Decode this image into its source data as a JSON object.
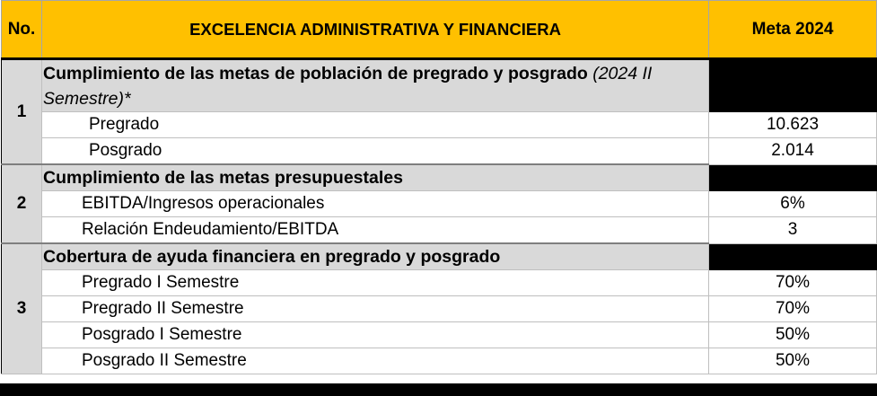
{
  "header": {
    "no_label": "No.",
    "title": "EXCELENCIA ADMINISTRATIVA Y FINANCIERA",
    "meta_label": "Meta 2024"
  },
  "groups": [
    {
      "number": "1",
      "title": "Cumplimiento de las metas de población de pregrado y posgrado",
      "note": "(2024 II Semestre)*",
      "rows": [
        {
          "label": "Pregrado",
          "value": "10.623"
        },
        {
          "label": "Posgrado",
          "value": "2.014"
        }
      ]
    },
    {
      "number": "2",
      "title": "Cumplimiento de las metas presupuestales",
      "rows": [
        {
          "label": "EBITDA/Ingresos operacionales",
          "value": "6%"
        },
        {
          "label": "Relación Endeudamiento/EBITDA",
          "value": "3"
        }
      ]
    },
    {
      "number": "3",
      "title": "Cobertura de ayuda financiera en pregrado y posgrado",
      "rows": [
        {
          "label": "Pregrado I Semestre",
          "value": "70%"
        },
        {
          "label": "Pregrado II Semestre",
          "value": "70%"
        },
        {
          "label": "Posgrado I Semestre",
          "value": "50%"
        },
        {
          "label": "Posgrado II Semestre",
          "value": "50%"
        }
      ]
    }
  ],
  "colors": {
    "header_bg": "#ffc000",
    "group_bg": "#d9d9d9",
    "redaction": "#000000"
  }
}
